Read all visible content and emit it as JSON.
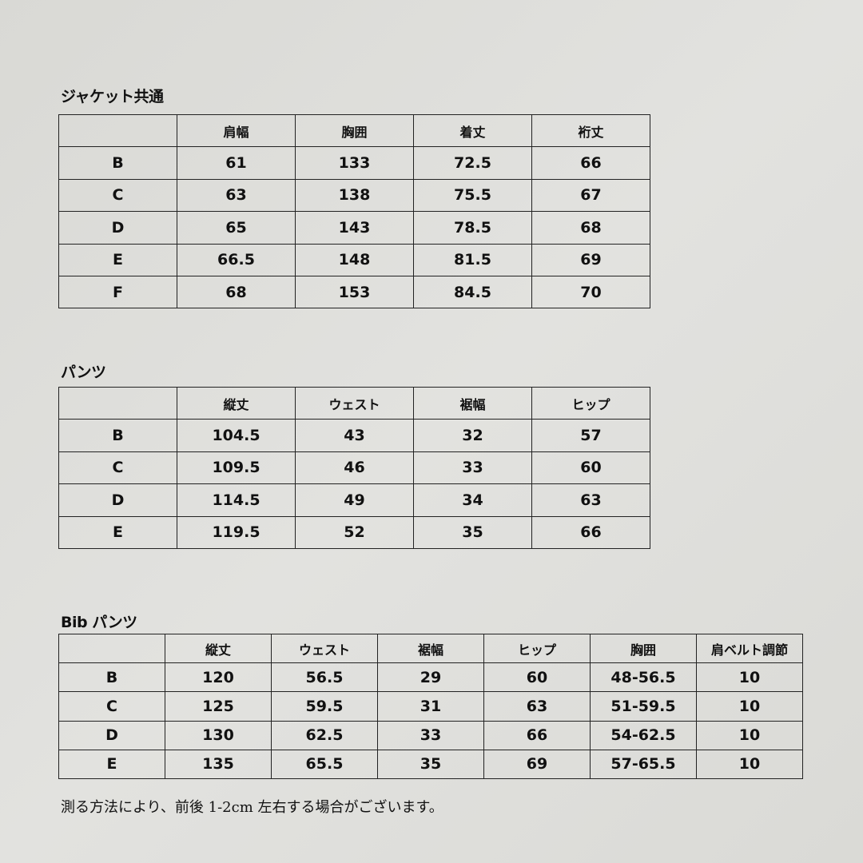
{
  "jacket": {
    "title": "ジャケット共通",
    "headers": [
      "",
      "肩幅",
      "胸囲",
      "着丈",
      "裄丈"
    ],
    "rows": [
      [
        "B",
        "61",
        "133",
        "72.5",
        "66"
      ],
      [
        "C",
        "63",
        "138",
        "75.5",
        "67"
      ],
      [
        "D",
        "65",
        "143",
        "78.5",
        "68"
      ],
      [
        "E",
        "66.5",
        "148",
        "81.5",
        "69"
      ],
      [
        "F",
        "68",
        "153",
        "84.5",
        "70"
      ]
    ]
  },
  "pants": {
    "title": "パンツ",
    "headers": [
      "",
      "縦丈",
      "ウェスト",
      "裾幅",
      "ヒップ"
    ],
    "rows": [
      [
        "B",
        "104.5",
        "43",
        "32",
        "57"
      ],
      [
        "C",
        "109.5",
        "46",
        "33",
        "60"
      ],
      [
        "D",
        "114.5",
        "49",
        "34",
        "63"
      ],
      [
        "E",
        "119.5",
        "52",
        "35",
        "66"
      ]
    ]
  },
  "bib_pants": {
    "title": "Bib パンツ",
    "headers": [
      "",
      "縦丈",
      "ウェスト",
      "裾幅",
      "ヒップ",
      "胸囲",
      "肩ベルト調節"
    ],
    "rows": [
      [
        "B",
        "120",
        "56.5",
        "29",
        "60",
        "48-56.5",
        "10"
      ],
      [
        "C",
        "125",
        "59.5",
        "31",
        "63",
        "51-59.5",
        "10"
      ],
      [
        "D",
        "130",
        "62.5",
        "33",
        "66",
        "54-62.5",
        "10"
      ],
      [
        "E",
        "135",
        "65.5",
        "35",
        "69",
        "57-65.5",
        "10"
      ]
    ]
  },
  "note": "測る方法により、前後 1-2cm 左右する場合がございます。"
}
